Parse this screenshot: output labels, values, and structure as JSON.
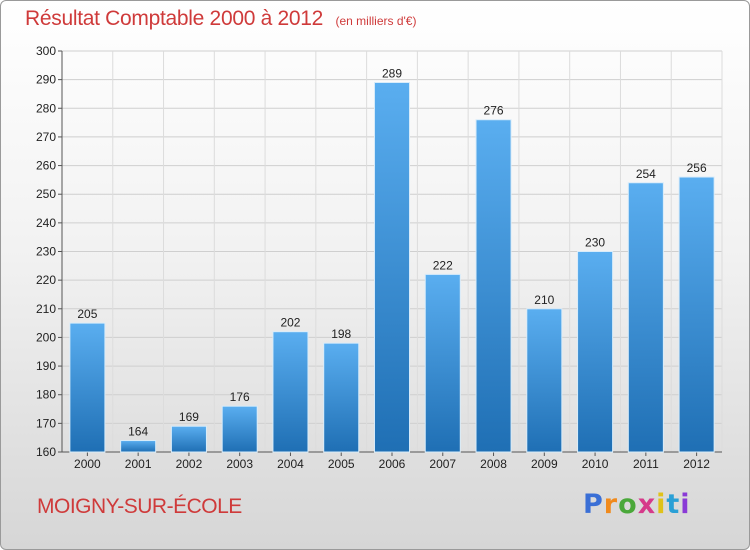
{
  "header": {
    "title": "Résultat Comptable 2000 à 2012",
    "subtitle": "(en milliers d'€)"
  },
  "footer": {
    "commune": "MOIGNY-SUR-ÉCOLE",
    "logo_text": "Proxiti",
    "logo_colors": [
      "#3a6fd6",
      "#f08a1c",
      "#4aa83a",
      "#d63a8a",
      "#e0c21a",
      "#2aa0d6",
      "#8a3ad6"
    ]
  },
  "chart_data": {
    "type": "bar",
    "title": "Résultat Comptable 2000 à 2012",
    "subtitle": "(en milliers d'€)",
    "xlabel": "",
    "ylabel": "",
    "categories": [
      "2000",
      "2001",
      "2002",
      "2003",
      "2004",
      "2005",
      "2006",
      "2007",
      "2008",
      "2009",
      "2010",
      "2011",
      "2012"
    ],
    "values": [
      205,
      164,
      169,
      176,
      202,
      198,
      289,
      222,
      276,
      210,
      230,
      254,
      256
    ],
    "ylim": [
      160,
      300
    ],
    "yticks": [
      160,
      170,
      180,
      190,
      200,
      210,
      220,
      230,
      240,
      250,
      260,
      270,
      280,
      290,
      300
    ],
    "grid": true,
    "legend": "none",
    "bar_color_top": "#5aaef0",
    "bar_color_bottom": "#1f6fb4"
  }
}
